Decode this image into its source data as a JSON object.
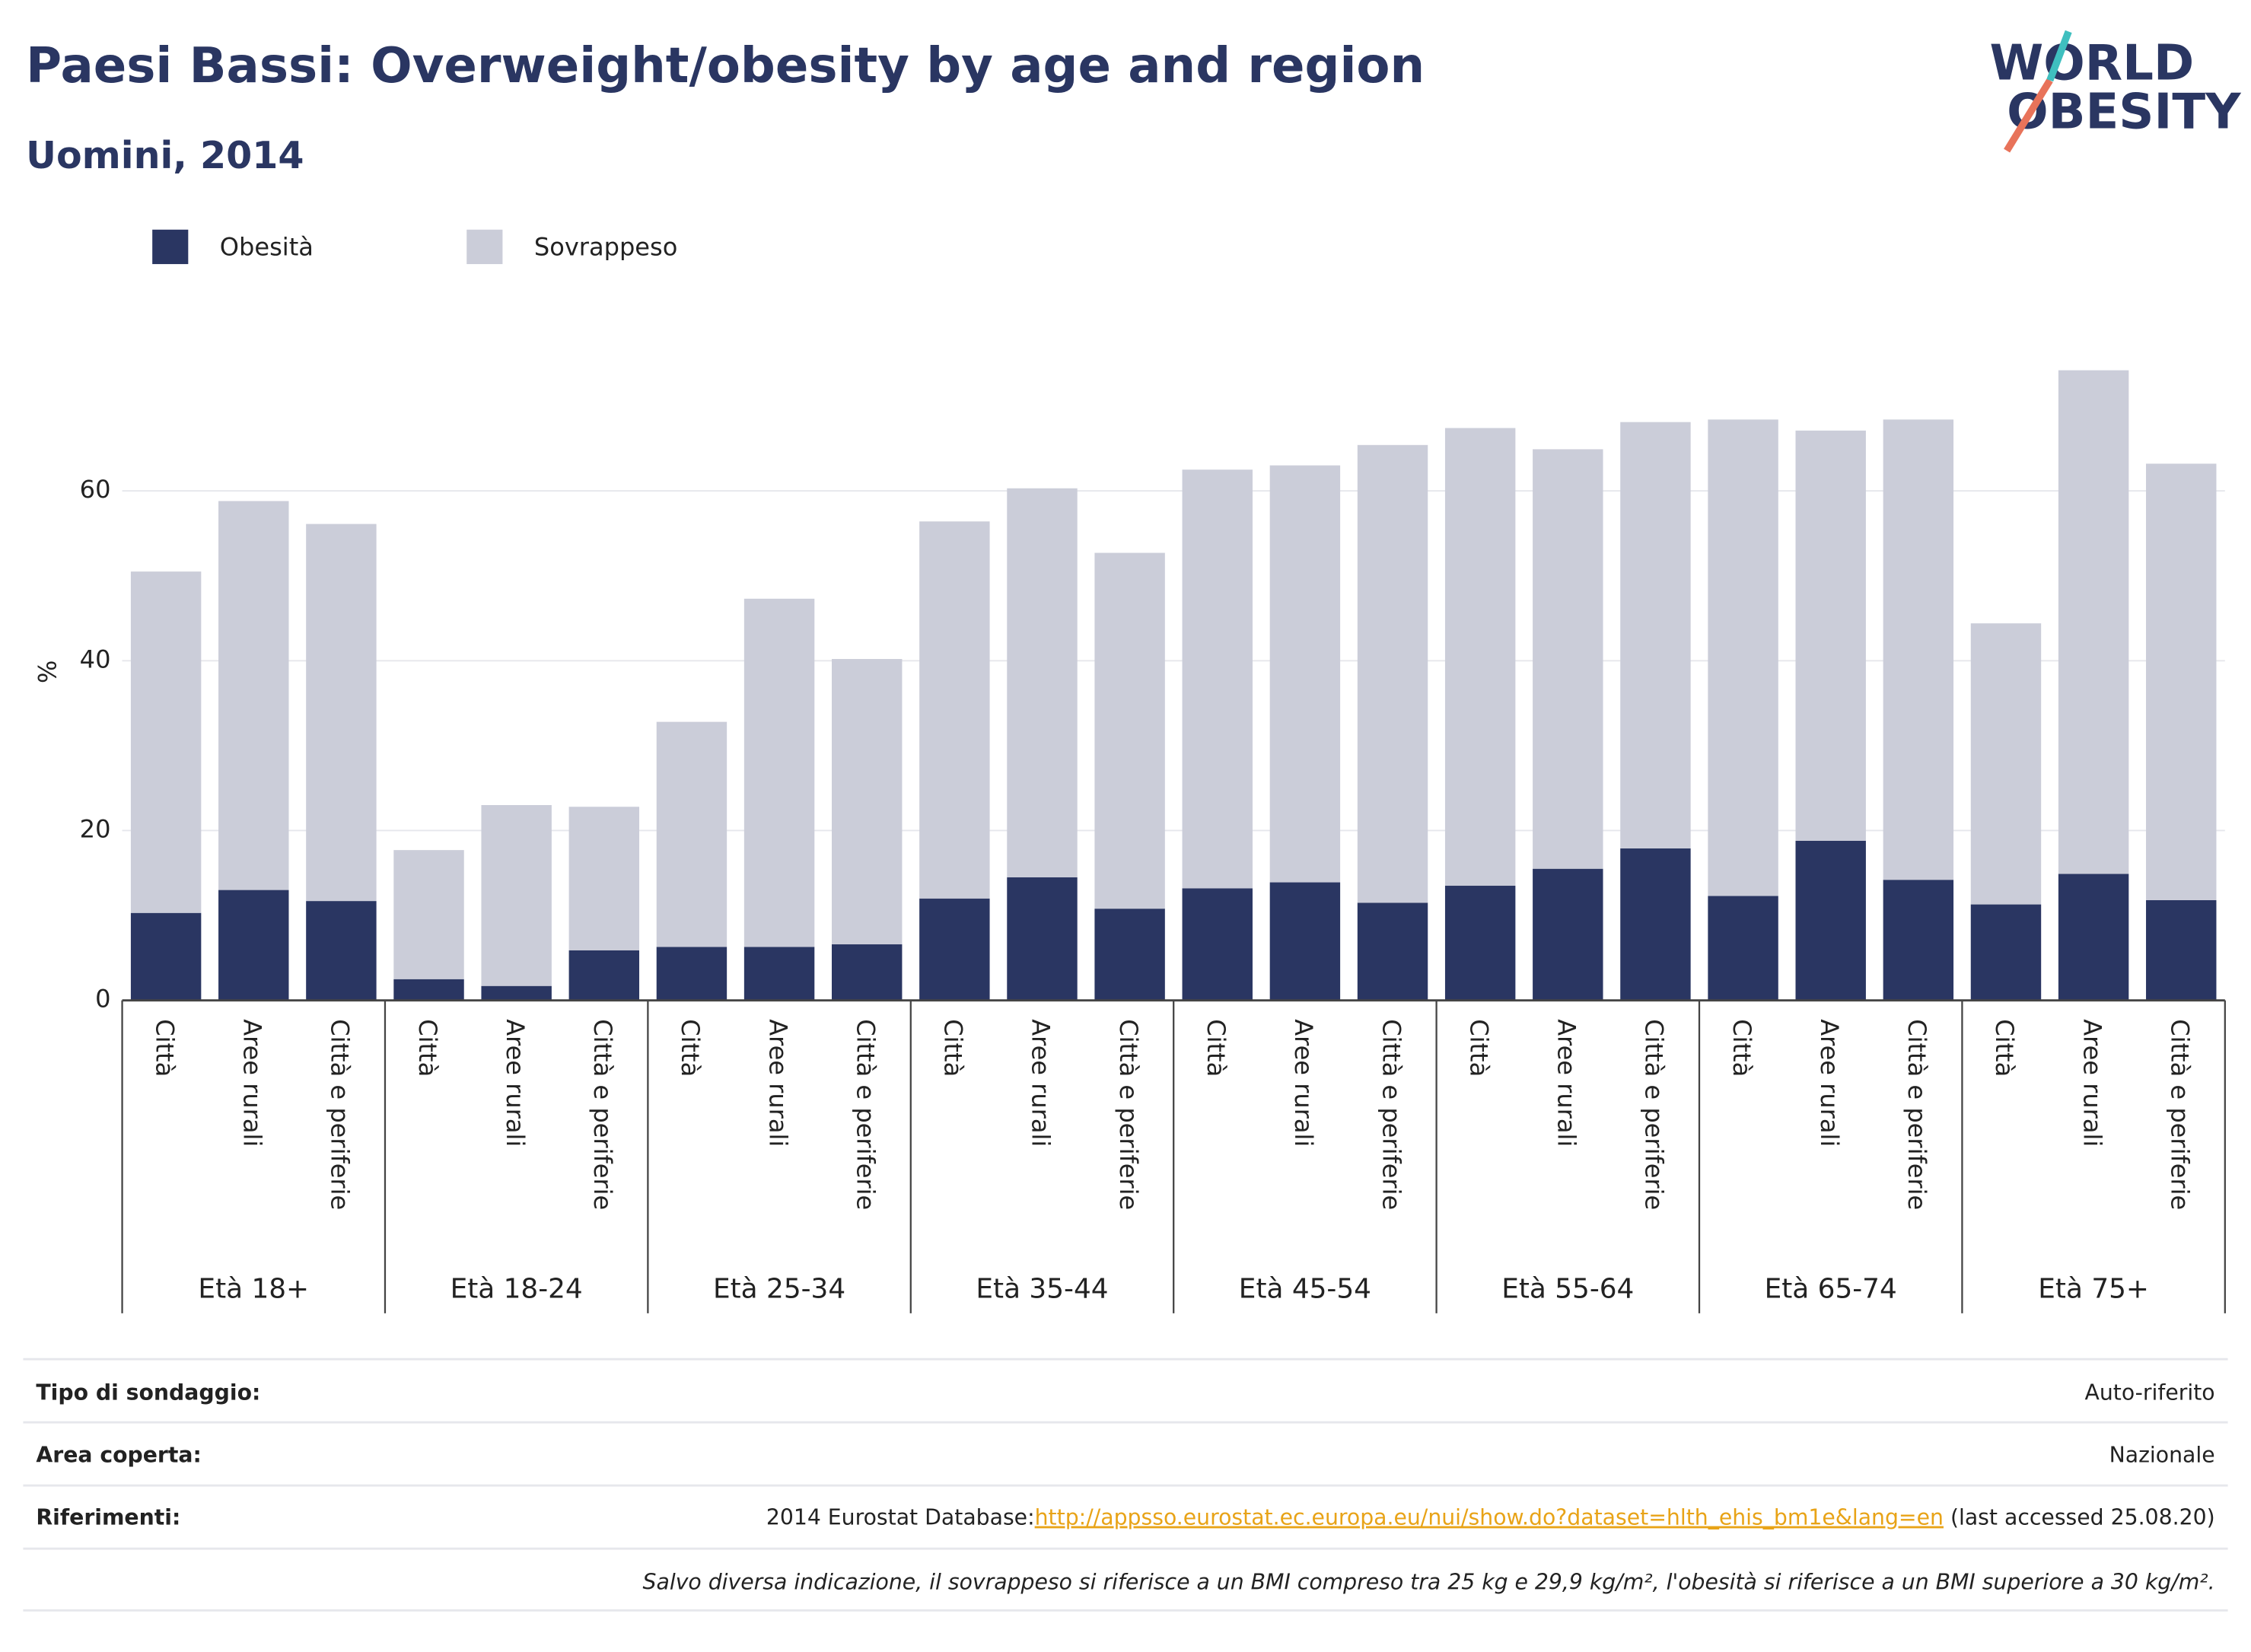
{
  "logo": [
    "WORLD",
    "OBESITY"
  ],
  "chart_data": {
    "type": "stacked-bar",
    "title": "Paesi Bassi: Overweight/obesity by age and region",
    "subtitle": "Uomini, 2014",
    "y_label": "%",
    "groups": [
      "Età 18+",
      "Età 18-24",
      "Età 25-34",
      "Età 35-44",
      "Età 45-54",
      "Età 55-64",
      "Età 65-74",
      "Età 75+"
    ],
    "categories": [
      "Città",
      "Aree rurali",
      "Città e periferie",
      "Città",
      "Aree rurali",
      "Città e periferie",
      "Città",
      "Aree rurali",
      "Città e periferie",
      "Città",
      "Aree rurali",
      "Città e periferie",
      "Città",
      "Aree rurali",
      "Città e periferie",
      "Città",
      "Aree rurali",
      "Città e periferie",
      "Città",
      "Aree rurali",
      "Città e periferie",
      "Città",
      "Aree rurali",
      "Città e periferie"
    ],
    "series": [
      {
        "name": "Obesità",
        "color": "#2a3662",
        "values": [
          10.3,
          13.0,
          11.7,
          2.5,
          1.7,
          5.9,
          6.3,
          6.3,
          6.6,
          12.0,
          14.5,
          10.8,
          13.2,
          13.9,
          11.5,
          13.5,
          15.5,
          17.9,
          12.3,
          18.8,
          14.2,
          11.3,
          14.9,
          11.8
        ]
      },
      {
        "name": "Sovrappeso",
        "color": "#cbcdd9",
        "values": [
          40.2,
          45.8,
          44.4,
          15.2,
          21.3,
          16.9,
          26.5,
          41.0,
          33.6,
          44.4,
          45.8,
          41.9,
          49.3,
          49.1,
          53.9,
          53.9,
          49.4,
          50.2,
          56.1,
          48.3,
          54.2,
          33.1,
          59.3,
          51.4
        ]
      }
    ],
    "ylim": [
      0,
      84
    ],
    "yticks": [
      0,
      20,
      40,
      60
    ],
    "grid": true
  },
  "info": {
    "rows": [
      {
        "label": "Tipo di sondaggio:",
        "value": "Auto-riferito"
      },
      {
        "label": "Area coperta:",
        "value": "Nazionale"
      }
    ],
    "references": {
      "label": "Riferimenti:",
      "prefix": "2014 Eurostat Database:",
      "link": "http://appsso.eurostat.ec.europa.eu/nui/show.do?dataset=hlth_ehis_bm1e&lang=en",
      "suffix": " (last accessed 25.08.20)"
    },
    "note": "Salvo diversa indicazione, il sovrappeso si riferisce a un BMI compreso tra 25 kg e 29,9 kg/m², l'obesità si riferisce a un BMI superiore a 30 kg/m²."
  }
}
